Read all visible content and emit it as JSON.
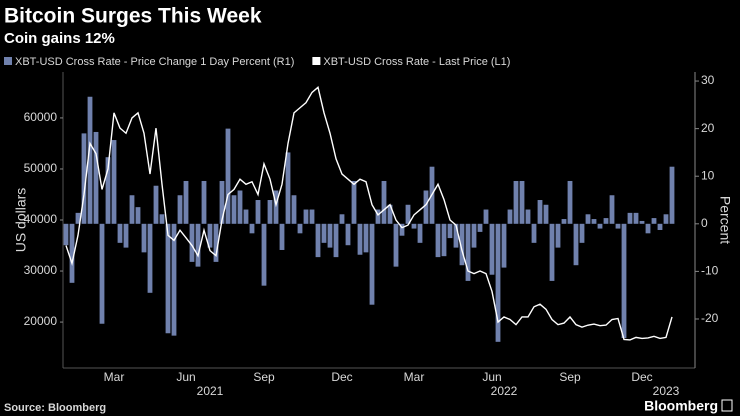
{
  "chart_data": {
    "type": "bar-line",
    "title": "Bitcoin Surges This Week",
    "subtitle": "Coin gains 12%",
    "ylabel": "US dollars",
    "y2label": "Percent",
    "source": "Source: Bloomberg",
    "brand": "Bloomberg",
    "categories": [
      null,
      null,
      null,
      null,
      null,
      null,
      null,
      null,
      "Mar",
      null,
      null,
      null,
      null,
      null,
      null,
      null,
      null,
      null,
      null,
      null,
      "Jun",
      null,
      null,
      null,
      null,
      null,
      null,
      null,
      null,
      null,
      null,
      null,
      null,
      "Sep",
      null,
      null,
      null,
      null,
      null,
      null,
      null,
      null,
      null,
      null,
      null,
      null,
      "Dec",
      null,
      null,
      null,
      null,
      null,
      null,
      null,
      null,
      null,
      null,
      null,
      "Mar",
      null,
      null,
      null,
      null,
      null,
      null,
      null,
      null,
      null,
      null,
      null,
      null,
      "Jun",
      null,
      null,
      null,
      null,
      null,
      null,
      null,
      null,
      null,
      null,
      null,
      null,
      "Sep",
      null,
      null,
      null,
      null,
      null,
      null,
      null,
      null,
      null,
      null,
      null,
      "Dec",
      null,
      null,
      null,
      null,
      null,
      null,
      null,
      null
    ],
    "year_labels": [
      null,
      null,
      null,
      null,
      null,
      null,
      null,
      null,
      null,
      null,
      null,
      null,
      null,
      null,
      null,
      null,
      null,
      null,
      null,
      null,
      null,
      null,
      null,
      null,
      "2021",
      null,
      null,
      null,
      null,
      null,
      null,
      null,
      null,
      null,
      null,
      null,
      null,
      null,
      null,
      null,
      null,
      null,
      null,
      null,
      null,
      null,
      null,
      null,
      null,
      null,
      null,
      null,
      null,
      null,
      null,
      null,
      null,
      null,
      null,
      null,
      null,
      null,
      null,
      null,
      null,
      null,
      null,
      null,
      null,
      null,
      null,
      null,
      null,
      "2022",
      null,
      null,
      null,
      null,
      null,
      null,
      null,
      null,
      null,
      null,
      null,
      null,
      null,
      null,
      null,
      null,
      null,
      null,
      null,
      null,
      null,
      null,
      null,
      null,
      null,
      null,
      "2023",
      null,
      null,
      null
    ],
    "series": [
      {
        "name": "XBT-USD Cross Rate - Price Change 1 Day Percent (R1)",
        "type": "bar",
        "axis": "y2",
        "color": "#7081ad",
        "values": [
          -4.5,
          -12.4,
          2.3,
          19,
          26.7,
          19.3,
          -21,
          14,
          17.6,
          -4,
          -5,
          6,
          3.5,
          -6,
          -14.5,
          8,
          2,
          -23,
          -23.5,
          6,
          9,
          -8,
          -9,
          9,
          -5,
          -8,
          9,
          20,
          6,
          7,
          3,
          -2,
          5,
          -13,
          5,
          7,
          -5.5,
          15,
          6,
          -2,
          3,
          3,
          -7,
          -4,
          -5,
          -7,
          2,
          -4.5,
          9,
          -6.5,
          -6,
          -17,
          3,
          9,
          4,
          -9,
          -2.5,
          4,
          -1,
          -4,
          7,
          12,
          -7,
          -6.8,
          -3,
          -5,
          -8.7,
          -12,
          -5,
          -1.7,
          3,
          -10.7,
          -24.8,
          -9.2,
          3,
          9,
          9,
          3,
          -4,
          5,
          4,
          -12,
          -5,
          1,
          9,
          -8.7,
          -4,
          2,
          1,
          -1,
          1.2,
          6,
          -1,
          -24,
          2.3,
          2.3,
          0.6,
          -2,
          1.2,
          -1.3,
          2,
          12,
          null,
          null,
          null
        ]
      },
      {
        "name": "XBT-USD Cross Rate - Last Price (L1)",
        "type": "line",
        "axis": "y",
        "color": "#ffffff",
        "values": [
          35000,
          31500,
          37000,
          45000,
          55000,
          53000,
          46000,
          50000,
          61000,
          58000,
          57000,
          60000,
          61000,
          57000,
          49000,
          58000,
          47000,
          37000,
          36000,
          38000,
          36500,
          35000,
          33000,
          38000,
          34000,
          33000,
          40000,
          45000,
          46000,
          48000,
          47000,
          47500,
          45000,
          51000,
          48000,
          43000,
          47000,
          55000,
          61000,
          62000,
          63000,
          65000,
          66000,
          61000,
          57000,
          52000,
          49000,
          48000,
          47000,
          48000,
          47500,
          43000,
          41000,
          42000,
          43000,
          40000,
          38500,
          39000,
          41000,
          42000,
          43000,
          45000,
          47000,
          44000,
          40000,
          39000,
          34000,
          30000,
          29500,
          30000,
          29500,
          26000,
          20000,
          21000,
          20500,
          19500,
          21000,
          21000,
          23000,
          23500,
          22500,
          20500,
          19500,
          19800,
          21000,
          19500,
          19000,
          19400,
          19600,
          19300,
          19400,
          20500,
          20700,
          16600,
          16500,
          17000,
          16800,
          16900,
          17200,
          16800,
          17000,
          21000,
          null,
          null,
          null
        ]
      }
    ],
    "ylim": [
      11000,
      69000
    ],
    "yticks": [
      20000,
      30000,
      40000,
      50000,
      60000
    ],
    "y2lim": [
      -30.3,
      31.9
    ],
    "y2ticks": [
      -20,
      -10,
      0,
      10,
      20,
      30
    ]
  }
}
